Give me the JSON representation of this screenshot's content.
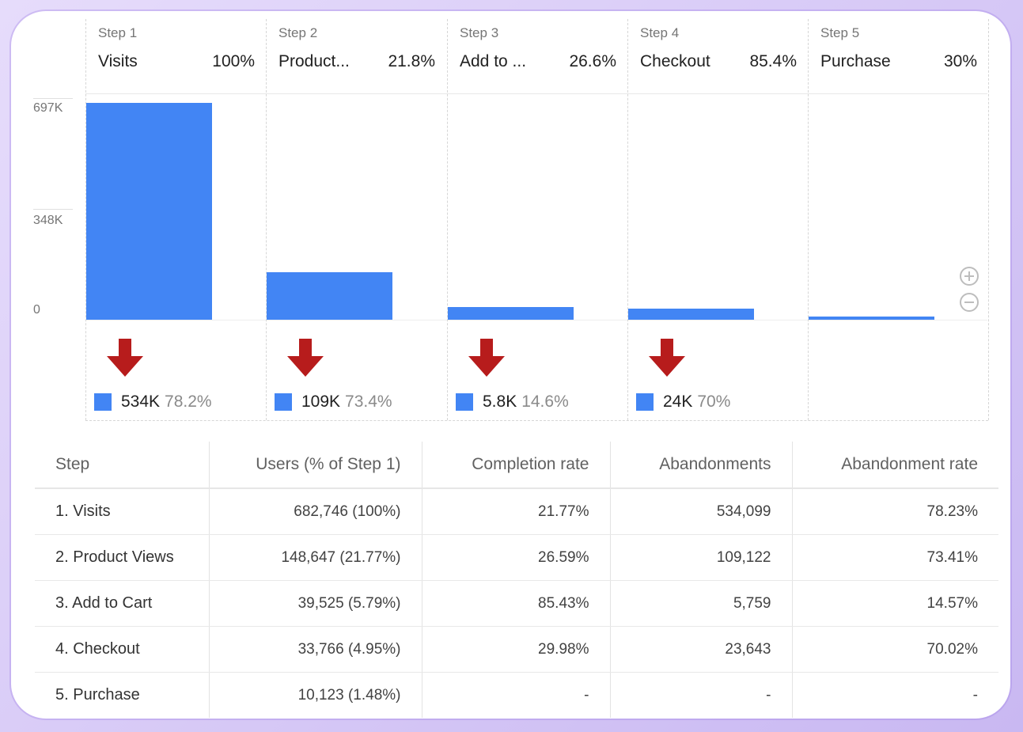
{
  "chart_data": {
    "type": "bar",
    "categories": [
      "Visits",
      "Product Views",
      "Add to Cart",
      "Checkout",
      "Purchase"
    ],
    "values": [
      682746,
      148647,
      39525,
      33766,
      10123
    ],
    "ylim": [
      0,
      697000
    ],
    "yticks": [
      {
        "value": 0,
        "label": "0"
      },
      {
        "value": 348000,
        "label": "348K"
      },
      {
        "value": 697000,
        "label": "697K"
      }
    ],
    "steps": [
      {
        "step": "Step 1",
        "name": "Visits",
        "pct": "100%"
      },
      {
        "step": "Step 2",
        "name": "Product...",
        "pct": "21.8%"
      },
      {
        "step": "Step 3",
        "name": "Add to ...",
        "pct": "26.6%"
      },
      {
        "step": "Step 4",
        "name": "Checkout",
        "pct": "85.4%"
      },
      {
        "step": "Step 5",
        "name": "Purchase",
        "pct": "30%"
      }
    ],
    "abandonment_labels": [
      {
        "value": "534K",
        "pct": "78.2%"
      },
      {
        "value": "109K",
        "pct": "73.4%"
      },
      {
        "value": "5.8K",
        "pct": "14.6%"
      },
      {
        "value": "24K",
        "pct": "70%"
      }
    ],
    "grid": true
  },
  "colors": {
    "bar": "#4285f4",
    "arrow": "#b71c1c"
  },
  "icons": [
    "arrow-down-icon",
    "zoom-in-icon",
    "zoom-out-icon"
  ],
  "table": {
    "headers": [
      "Step",
      "Users (% of Step 1)",
      "Completion rate",
      "Abandonments",
      "Abandonment rate"
    ],
    "rows": [
      [
        "1. Visits",
        "682,746 (100%)",
        "21.77%",
        "534,099",
        "78.23%"
      ],
      [
        "2. Product Views",
        "148,647 (21.77%)",
        "26.59%",
        "109,122",
        "73.41%"
      ],
      [
        "3. Add to Cart",
        "39,525 (5.79%)",
        "85.43%",
        "5,759",
        "14.57%"
      ],
      [
        "4. Checkout",
        "33,766 (4.95%)",
        "29.98%",
        "23,643",
        "70.02%"
      ],
      [
        "5. Purchase",
        "10,123 (1.48%)",
        "-",
        "-",
        "-"
      ]
    ]
  }
}
